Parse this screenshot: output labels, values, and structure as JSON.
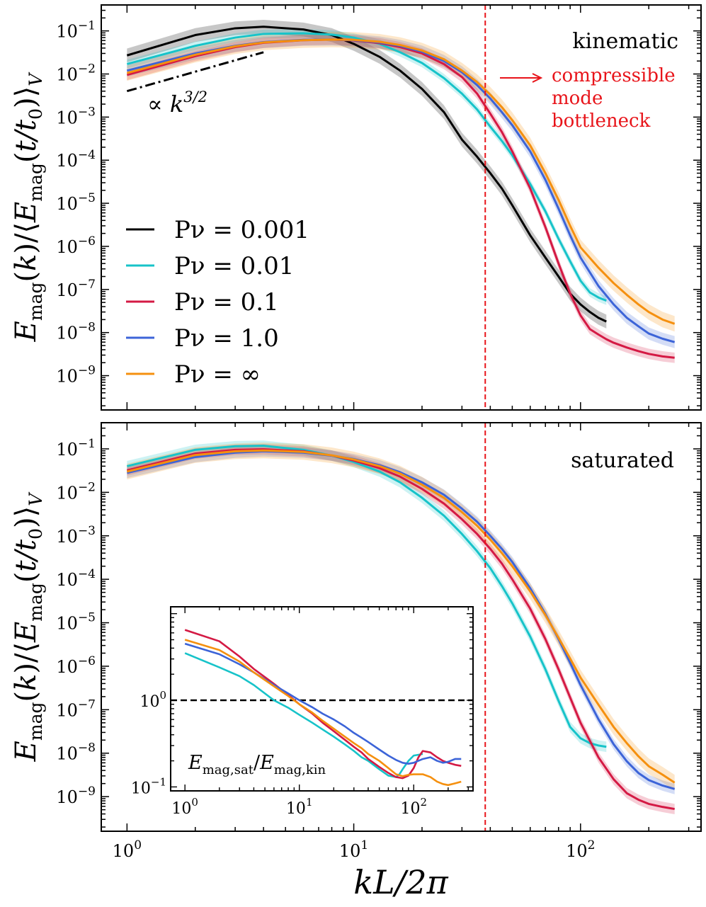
{
  "chart_data": [
    {
      "type": "line",
      "panel": "top",
      "x_scale": "log",
      "y_scale": "log",
      "xlim": [
        0.77,
        340
      ],
      "ylim": [
        1.6e-10,
        0.4
      ],
      "xlabel": "kL/2π",
      "ylabel": "E_mag(k) / ⟨E_mag(t/t0)⟩_V",
      "x_ticks": [
        1,
        10,
        100
      ],
      "x_tick_labels": [
        "10^0",
        "10^1",
        "10^2"
      ],
      "y_ticks": [
        1e-09,
        1e-08,
        1e-07,
        1e-06,
        1e-05,
        0.0001,
        0.001,
        0.01,
        0.1
      ],
      "y_tick_labels": [
        "10^-9",
        "10^-8",
        "10^-7",
        "10^-6",
        "10^-5",
        "10^-4",
        "10^-3",
        "10^-2",
        "10^-1"
      ],
      "grid": false,
      "legend_position": "center-left",
      "annotations": {
        "regime": "kinematic",
        "powerlaw_label": "∝ k^3/2",
        "powerlaw_line": {
          "x": [
            1,
            4
          ],
          "y": [
            0.004,
            0.032
          ]
        },
        "bottleneck_text": [
          "compressible",
          "mode",
          "bottleneck"
        ],
        "vline_x": 38
      },
      "series": [
        {
          "name": "Pν = 0.001",
          "color": "#000000",
          "x": [
            1,
            2,
            3,
            4,
            6,
            8,
            10,
            13,
            16,
            20,
            25,
            30,
            35,
            40,
            45,
            50,
            60,
            70,
            80,
            90,
            100,
            110,
            120,
            130
          ],
          "y": [
            0.027,
            0.08,
            0.115,
            0.125,
            0.108,
            0.08,
            0.05,
            0.025,
            0.012,
            0.0045,
            0.0013,
            0.0003,
            0.00012,
            5e-05,
            2.2e-05,
            9e-06,
            1.8e-06,
            5.5e-07,
            2e-07,
            8e-08,
            4.5e-08,
            3e-08,
            2.2e-08,
            1.8e-08
          ],
          "band": 0.16
        },
        {
          "name": "Pν = 0.01",
          "color": "#17c3c9",
          "x": [
            1,
            2,
            3,
            4,
            6,
            8,
            10,
            13,
            16,
            20,
            25,
            30,
            35,
            40,
            45,
            50,
            60,
            70,
            80,
            90,
            100,
            110,
            120,
            130
          ],
          "y": [
            0.017,
            0.045,
            0.07,
            0.085,
            0.088,
            0.082,
            0.07,
            0.05,
            0.032,
            0.018,
            0.008,
            0.0035,
            0.0015,
            0.0006,
            0.00028,
            0.00013,
            2.8e-05,
            6.5e-06,
            1.5e-06,
            4.5e-07,
            1.6e-07,
            8.5e-08,
            6.5e-08,
            5.5e-08
          ],
          "band": 0.1
        },
        {
          "name": "Pν = 0.1",
          "color": "#d41a44",
          "x": [
            1,
            2,
            3,
            4,
            6,
            8,
            10,
            13,
            16,
            20,
            25,
            30,
            35,
            40,
            45,
            50,
            60,
            70,
            80,
            90,
            100,
            110,
            120,
            130,
            140,
            160,
            180,
            200,
            230,
            260
          ],
          "y": [
            0.0095,
            0.026,
            0.042,
            0.053,
            0.061,
            0.063,
            0.06,
            0.052,
            0.042,
            0.03,
            0.017,
            0.0085,
            0.0035,
            0.0012,
            0.00045,
            0.00016,
            2.2e-05,
            2.8e-06,
            4e-07,
            8e-08,
            2.5e-08,
            1.2e-08,
            9e-09,
            7e-09,
            5.8e-09,
            4.5e-09,
            3.7e-09,
            3.2e-09,
            2.8e-09,
            2.6e-09
          ],
          "band": 0.12
        },
        {
          "name": "Pν = 1.0",
          "color": "#3c64d8",
          "x": [
            1,
            2,
            3,
            4,
            6,
            8,
            10,
            13,
            16,
            20,
            25,
            30,
            35,
            40,
            45,
            50,
            60,
            70,
            80,
            90,
            100,
            120,
            140,
            160,
            180,
            200,
            230,
            260
          ],
          "y": [
            0.012,
            0.03,
            0.045,
            0.055,
            0.062,
            0.063,
            0.061,
            0.054,
            0.045,
            0.033,
            0.02,
            0.011,
            0.0055,
            0.0027,
            0.0013,
            0.00065,
            0.00016,
            3.5e-05,
            7.5e-06,
            1.8e-06,
            5.5e-07,
            1.2e-07,
            4.5e-08,
            2.2e-08,
            1.4e-08,
            9.5e-09,
            7.2e-09,
            6e-09
          ],
          "band": 0.14
        },
        {
          "name": "Pν = ∞",
          "color": "#f5900f",
          "x": [
            1,
            2,
            3,
            4,
            6,
            8,
            10,
            13,
            16,
            20,
            25,
            30,
            35,
            40,
            45,
            50,
            60,
            70,
            80,
            90,
            100,
            120,
            140,
            160,
            180,
            200,
            230,
            260
          ],
          "y": [
            0.0105,
            0.028,
            0.044,
            0.054,
            0.061,
            0.063,
            0.062,
            0.056,
            0.047,
            0.035,
            0.022,
            0.012,
            0.0065,
            0.0033,
            0.0017,
            0.00085,
            0.00022,
            5e-05,
            1.2e-05,
            3e-06,
            9.5e-07,
            3.2e-07,
            1.4e-07,
            7.5e-08,
            4.5e-08,
            3e-08,
            2e-08,
            1.6e-08
          ],
          "band": 0.18
        }
      ]
    },
    {
      "type": "line",
      "panel": "bottom",
      "x_scale": "log",
      "y_scale": "log",
      "xlim": [
        0.77,
        340
      ],
      "ylim": [
        1.6e-10,
        0.4
      ],
      "xlabel": "kL/2π",
      "ylabel": "E_mag(k) / ⟨E_mag(t/t0)⟩_V",
      "x_ticks": [
        1,
        10,
        100
      ],
      "x_tick_labels": [
        "10^0",
        "10^1",
        "10^2"
      ],
      "y_ticks": [
        1e-09,
        1e-08,
        1e-07,
        1e-06,
        1e-05,
        0.0001,
        0.001,
        0.01,
        0.1
      ],
      "y_tick_labels": [
        "10^-9",
        "10^-8",
        "10^-7",
        "10^-6",
        "10^-5",
        "10^-4",
        "10^-3",
        "10^-2",
        "10^-1"
      ],
      "grid": false,
      "annotations": {
        "regime": "saturated",
        "vline_x": 38
      },
      "series": [
        {
          "name": "Pν = 0.01",
          "color": "#17c3c9",
          "x": [
            1,
            2,
            3,
            4,
            6,
            8,
            10,
            13,
            16,
            20,
            25,
            30,
            35,
            40,
            45,
            50,
            60,
            70,
            80,
            90,
            100,
            110,
            120,
            130
          ],
          "y": [
            0.04,
            0.095,
            0.115,
            0.118,
            0.095,
            0.07,
            0.05,
            0.03,
            0.017,
            0.0075,
            0.0029,
            0.0011,
            0.00044,
            0.00018,
            7e-05,
            2.8e-05,
            4.8e-06,
            8.5e-07,
            1.6e-07,
            4e-08,
            2.2e-08,
            1.7e-08,
            1.5e-08,
            1.4e-08
          ],
          "band": 0.12
        },
        {
          "name": "Pν = 0.1",
          "color": "#d41a44",
          "x": [
            1,
            2,
            3,
            4,
            6,
            8,
            10,
            13,
            16,
            20,
            25,
            30,
            35,
            40,
            45,
            50,
            60,
            70,
            80,
            90,
            100,
            120,
            140,
            160,
            180,
            200,
            230,
            260
          ],
          "y": [
            0.032,
            0.078,
            0.095,
            0.098,
            0.088,
            0.07,
            0.054,
            0.036,
            0.023,
            0.012,
            0.0055,
            0.0024,
            0.0011,
            0.0005,
            0.00023,
            0.0001,
            2.1e-05,
            4.2e-06,
            8.5e-07,
            1.9e-07,
            5e-08,
            8e-09,
            2.5e-09,
            1.2e-09,
            8.5e-10,
            6.8e-10,
            5.8e-10,
            5.2e-10
          ],
          "band": 0.12
        },
        {
          "name": "Pν = 1.0",
          "color": "#3c64d8",
          "x": [
            1,
            2,
            3,
            4,
            6,
            8,
            10,
            13,
            16,
            20,
            25,
            30,
            35,
            40,
            45,
            50,
            60,
            70,
            80,
            90,
            100,
            120,
            140,
            160,
            180,
            200,
            230,
            260
          ],
          "y": [
            0.028,
            0.065,
            0.082,
            0.088,
            0.082,
            0.07,
            0.058,
            0.042,
            0.029,
            0.017,
            0.0088,
            0.0042,
            0.0021,
            0.001,
            0.0005,
            0.00025,
            6.2e-05,
            1.6e-05,
            4.2e-06,
            1.2e-06,
            3.7e-07,
            6e-08,
            1.6e-08,
            6.5e-09,
            3.5e-09,
            2.4e-09,
            1.8e-09,
            1.5e-09
          ],
          "band": 0.12
        },
        {
          "name": "Pν = ∞",
          "color": "#f5900f",
          "x": [
            1,
            2,
            3,
            4,
            6,
            8,
            10,
            13,
            16,
            20,
            25,
            30,
            35,
            40,
            45,
            50,
            60,
            70,
            80,
            90,
            100,
            120,
            140,
            160,
            180,
            200,
            230,
            260
          ],
          "y": [
            0.03,
            0.072,
            0.088,
            0.092,
            0.085,
            0.071,
            0.057,
            0.04,
            0.027,
            0.015,
            0.0075,
            0.0035,
            0.0017,
            0.00082,
            0.0004,
            0.0002,
            5.3e-05,
            1.5e-05,
            4.5e-06,
            1.5e-06,
            5.5e-07,
            1.3e-07,
            4e-08,
            1.7e-08,
            8.5e-09,
            5e-09,
            3.2e-09,
            2.1e-09
          ],
          "band": 0.18
        }
      ]
    },
    {
      "type": "line",
      "panel": "inset",
      "x_scale": "log",
      "y_scale": "log",
      "xlim": [
        0.75,
        330
      ],
      "ylim": [
        0.09,
        12
      ],
      "x_ticks": [
        1,
        10,
        100
      ],
      "x_tick_labels": [
        "10^0",
        "10^1",
        "10^2"
      ],
      "y_ticks": [
        0.1,
        1
      ],
      "y_tick_labels": [
        "10^-1",
        "10^0"
      ],
      "hline_y": 1.0,
      "annotation": "E_mag,sat / E_mag,kin",
      "series": [
        {
          "name": "Pν = 0.01",
          "color": "#17c3c9",
          "x": [
            1,
            2,
            3,
            4,
            6,
            8,
            10,
            13,
            16,
            20,
            25,
            30,
            35,
            40,
            50,
            60,
            70,
            75,
            80,
            90,
            100,
            110,
            120
          ],
          "y": [
            3.5,
            2.4,
            1.9,
            1.5,
            1.0,
            0.82,
            0.68,
            0.55,
            0.46,
            0.38,
            0.31,
            0.26,
            0.22,
            0.2,
            0.16,
            0.135,
            0.13,
            0.14,
            0.16,
            0.2,
            0.23,
            0.235,
            0.24
          ]
        },
        {
          "name": "Pν = 0.1",
          "color": "#d41a44",
          "x": [
            1,
            2,
            3,
            4,
            6,
            8,
            10,
            13,
            16,
            20,
            25,
            30,
            35,
            40,
            50,
            60,
            70,
            80,
            90,
            100,
            110,
            120,
            140,
            160,
            180,
            200,
            230,
            260
          ],
          "y": [
            6.5,
            4.8,
            3.2,
            2.3,
            1.55,
            1.15,
            0.9,
            0.7,
            0.55,
            0.44,
            0.35,
            0.29,
            0.25,
            0.21,
            0.17,
            0.145,
            0.13,
            0.126,
            0.135,
            0.165,
            0.22,
            0.26,
            0.25,
            0.22,
            0.2,
            0.19,
            0.18,
            0.175
          ]
        },
        {
          "name": "Pν = 1.0",
          "color": "#3c64d8",
          "x": [
            1,
            2,
            3,
            4,
            6,
            8,
            10,
            13,
            16,
            20,
            25,
            30,
            35,
            40,
            50,
            60,
            70,
            80,
            90,
            100,
            120,
            140,
            160,
            180,
            200,
            230,
            260
          ],
          "y": [
            4.5,
            3.4,
            2.6,
            2.1,
            1.5,
            1.2,
            1.0,
            0.83,
            0.7,
            0.6,
            0.5,
            0.42,
            0.37,
            0.33,
            0.27,
            0.23,
            0.205,
            0.19,
            0.185,
            0.19,
            0.21,
            0.22,
            0.2,
            0.19,
            0.195,
            0.21,
            0.21
          ]
        },
        {
          "name": "Pν = ∞",
          "color": "#f5900f",
          "x": [
            1,
            2,
            3,
            4,
            6,
            8,
            10,
            13,
            16,
            20,
            25,
            30,
            35,
            40,
            50,
            60,
            70,
            80,
            90,
            100,
            120,
            140,
            160,
            180,
            200,
            230,
            260
          ],
          "y": [
            5.0,
            3.8,
            2.8,
            2.1,
            1.45,
            1.12,
            0.9,
            0.72,
            0.58,
            0.47,
            0.38,
            0.32,
            0.28,
            0.24,
            0.2,
            0.165,
            0.14,
            0.133,
            0.138,
            0.14,
            0.14,
            0.13,
            0.115,
            0.108,
            0.105,
            0.11,
            0.115
          ]
        }
      ]
    }
  ]
}
